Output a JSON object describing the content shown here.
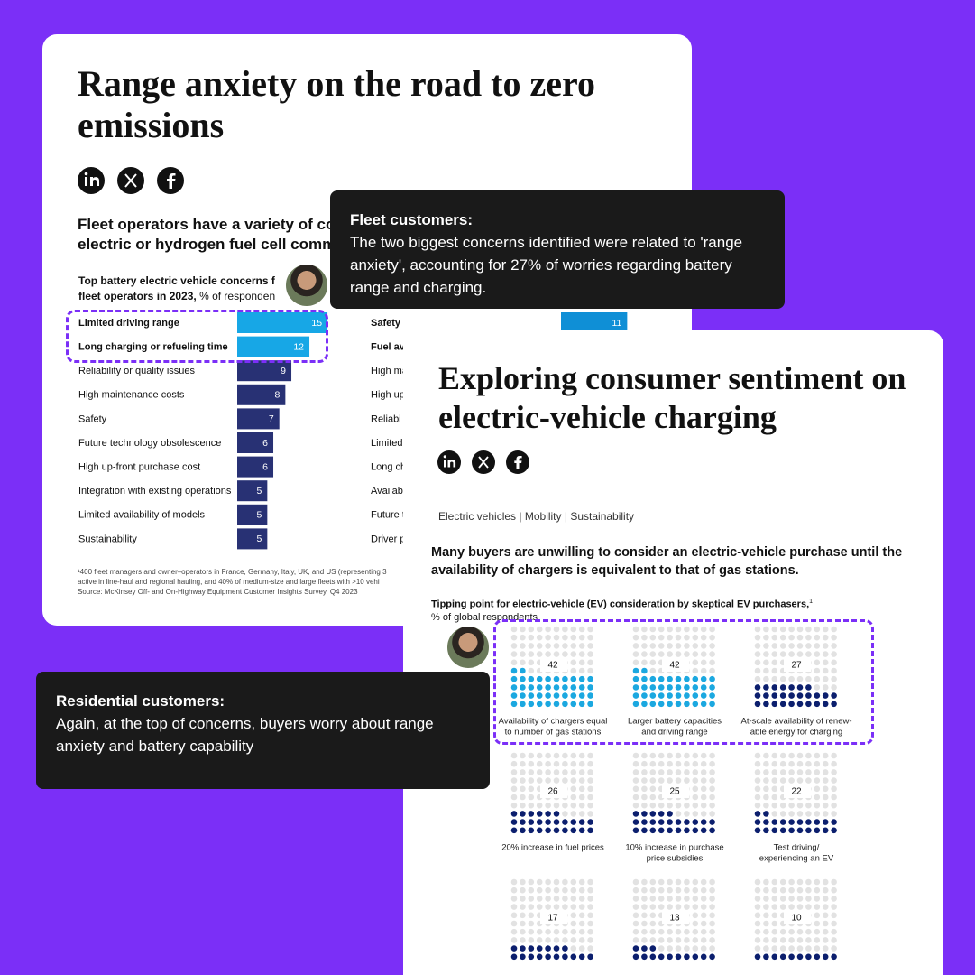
{
  "fleet_article": {
    "title": "Range anxiety on the road to zero emissions",
    "subtitle": [
      "Fleet operators have a variety of co",
      "electric or hydrogen fuel cell comm"
    ],
    "chart_title": [
      "Top battery electric vehicle concerns f",
      "fleet operators in 2023,"
    ],
    "chart_unit": "% of responden",
    "chart": {
      "type": "bar",
      "categories": [
        "Limited driving range",
        "Long charging or refueling time",
        "Reliability or quality issues",
        "High maintenance costs",
        "Safety",
        "Future technology obsolescence",
        "High up-front purchase cost",
        "Integration with existing operations",
        "Limited availability of models",
        "Sustainability"
      ],
      "values": [
        15,
        12,
        9,
        8,
        7,
        6,
        6,
        5,
        5,
        5
      ],
      "colors": [
        "#17a7e6",
        "#17a7e6",
        "#283174",
        "#283174",
        "#283174",
        "#283174",
        "#283174",
        "#283174",
        "#283174",
        "#283174"
      ],
      "emphasized": [
        true,
        true,
        false,
        false,
        false,
        false,
        false,
        false,
        false,
        false
      ],
      "right_categories": [
        "Safety",
        "Fuel av",
        "High ma",
        "High up",
        "Reliabi",
        "Limited",
        "Long ch",
        "Availabi",
        "Future t",
        "Driver p"
      ],
      "right_values": [
        11,
        null,
        null,
        null,
        null,
        null,
        null,
        null,
        null,
        null
      ],
      "right_color": "#0f8fd6",
      "right_emphasized": [
        true,
        true,
        false,
        false,
        false,
        false,
        false,
        false,
        false,
        false
      ]
    },
    "footnote": [
      "¹400 fleet managers and owner–operators in France, Germany, Italy, UK, and US (representing 3",
      "active in line-haul and regional hauling, and 40% of medium-size and large fleets with >10 vehi",
      "Source: McKinsey Off- and On-Highway Equipment Customer Insights Survey, Q4 2023"
    ]
  },
  "fleet_callout": {
    "heading": "Fleet customers:",
    "text": "The two biggest concerns identified were related to 'range anxiety', accounting for 27% of worries regarding battery range and charging."
  },
  "consumer_article": {
    "title": "Exploring consumer sentiment on electric-vehicle charging",
    "tags": [
      "Electric vehicles",
      "Mobility",
      "Sustainability"
    ],
    "tag_separator": "|",
    "subtitle": "Many buyers are unwilling to consider an electric-vehicle purchase until the availability of chargers is equivalent to that of gas stations.",
    "chart_title": "Tipping point for electric-vehicle (EV) consideration by skeptical EV purchasers,",
    "chart_title_note": "1",
    "chart_unit": "% of global respondents",
    "chart": {
      "type": "waffle",
      "values": [
        42,
        42,
        27,
        26,
        25,
        22,
        17,
        13,
        10
      ],
      "labels": [
        [
          "Availability of chargers equal",
          "to number of gas stations"
        ],
        [
          "Larger battery capacities",
          "and driving range"
        ],
        [
          "At-scale availability of renew-",
          "able energy for charging"
        ],
        [
          "20% increase in fuel prices"
        ],
        [
          "10% increase in purchase",
          "price subsidies"
        ],
        [
          "Test driving/",
          "experiencing an EV"
        ],
        null,
        null,
        null
      ],
      "colors": [
        "#1ba8e0",
        "#1ba8e0",
        "#0c1f6e",
        "#0c1f6e",
        "#0c1f6e",
        "#0c1f6e",
        "#0c1f6e",
        "#0c1f6e",
        "#0c1f6e"
      ],
      "empty_color": "#e2e2e2"
    }
  },
  "residential_callout": {
    "heading": "Residential customers:",
    "text": "Again, at the top of concerns, buyers worry about range anxiety and battery capability"
  }
}
